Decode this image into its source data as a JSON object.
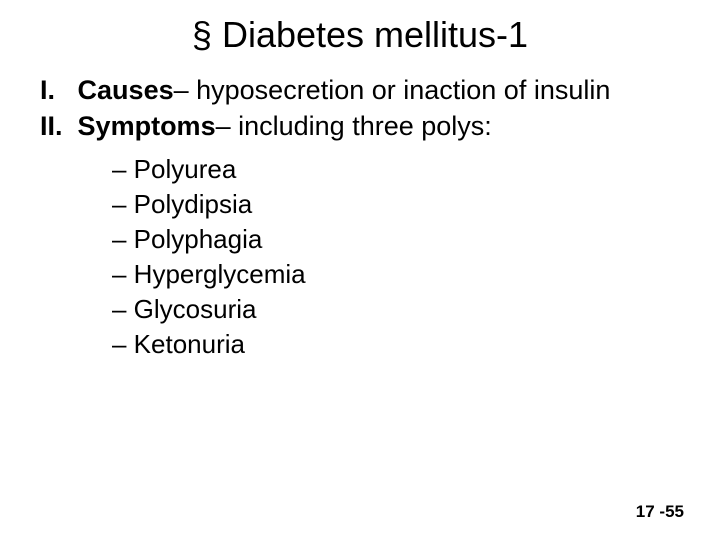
{
  "title": "§ Diabetes mellitus-1",
  "mainItems": [
    {
      "number": "I.",
      "label": "Causes",
      "rest": "– hyposecretion or inaction of insulin"
    },
    {
      "number": "II.",
      "label": "Symptoms",
      "rest": "– including three polys:"
    }
  ],
  "subItems": [
    "– Polyurea",
    "– Polydipsia",
    "– Polyphagia",
    "– Hyperglycemia",
    "– Glycosuria",
    "– Ketonuria"
  ],
  "pageNumber": "17 -55",
  "styling": {
    "background_color": "#ffffff",
    "text_color": "#000000",
    "title_fontsize": 36,
    "main_fontsize": 27,
    "sub_fontsize": 26,
    "page_number_fontsize": 17,
    "font_family": "Arial"
  }
}
